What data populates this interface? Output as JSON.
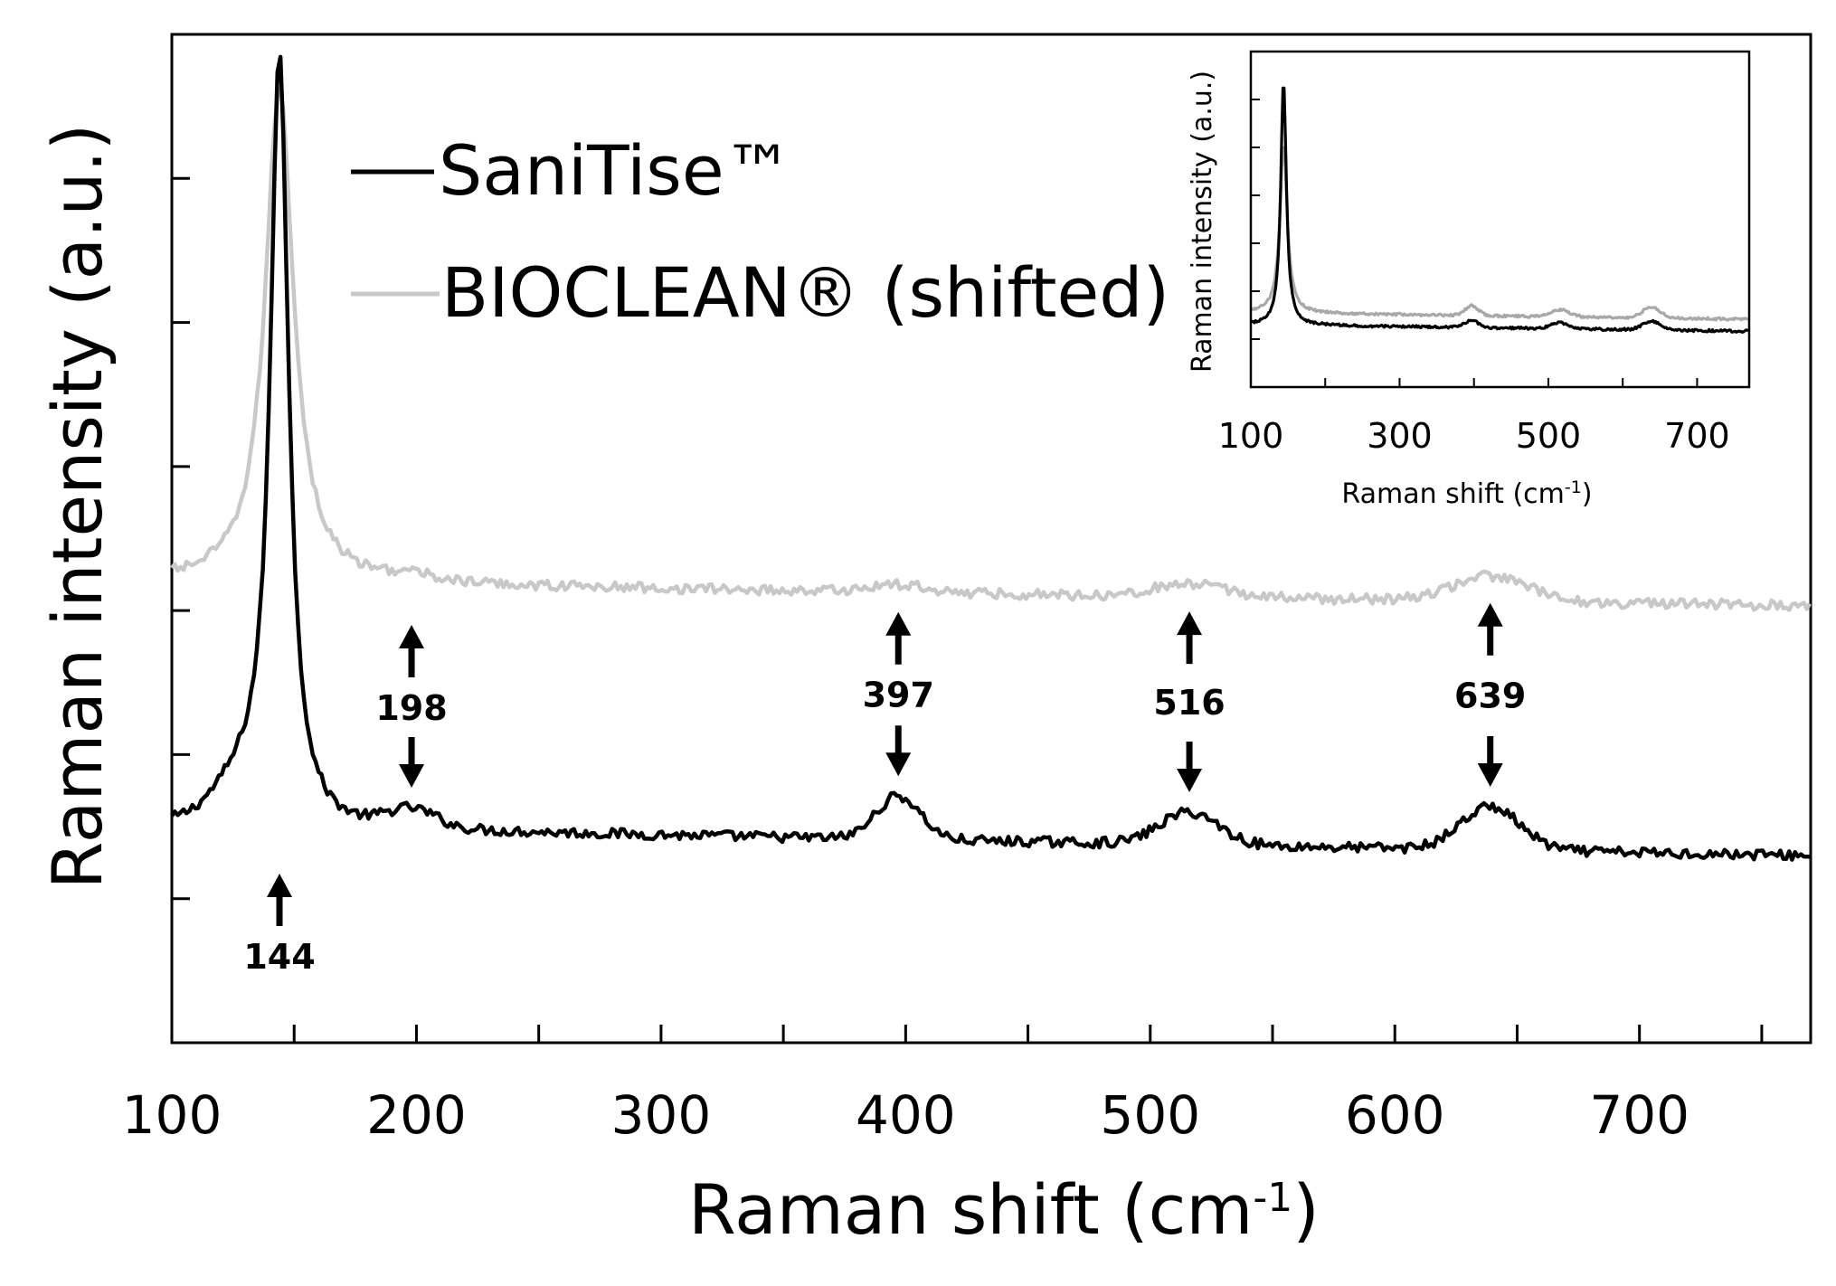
{
  "chart_data": [
    {
      "type": "line",
      "title": "",
      "xlabel": "Raman shift (cm",
      "xlabel_sup": "-1",
      "xlabel_close": ")",
      "ylabel": "Raman intensity (a.u.)",
      "xlim": [
        100,
        770
      ],
      "ylim": [
        0,
        14
      ],
      "x_ticks": [
        100,
        200,
        300,
        400,
        500,
        600,
        700
      ],
      "x_tick_labels": [
        "100",
        "200",
        "300",
        "400",
        "500",
        "600",
        "700"
      ],
      "x_minor_ticks": [
        150,
        250,
        350,
        450,
        550,
        650,
        750
      ],
      "y_ticks": [
        2,
        4,
        6,
        8,
        10,
        12
      ],
      "y_tick_labels": [],
      "legend": {
        "position": "top-center",
        "entries": [
          {
            "label": "SaniTise™",
            "color": "#000000"
          },
          {
            "label": "BIOCLEAN® (shifted)",
            "color": "#c8c8c8"
          }
        ]
      },
      "series": [
        {
          "name": "SaniTise™",
          "color": "#000000",
          "baseline": 3.0,
          "slope_per_100": -0.06,
          "noise": 0.07,
          "peaks": [
            {
              "x": 144,
              "height": 10.6,
              "width": 4.5,
              "shape": "lorentz"
            },
            {
              "x": 130,
              "height": 0.5,
              "width": 12,
              "shape": "gauss"
            },
            {
              "x": 198,
              "height": 0.25,
              "width": 10,
              "shape": "gauss"
            },
            {
              "x": 397,
              "height": 0.6,
              "width": 9,
              "shape": "gauss"
            },
            {
              "x": 516,
              "height": 0.45,
              "width": 12,
              "shape": "gauss"
            },
            {
              "x": 639,
              "height": 0.6,
              "width": 12,
              "shape": "gauss"
            }
          ]
        },
        {
          "name": "BIOCLEAN® (shifted)",
          "color": "#c8c8c8",
          "baseline": 6.4,
          "slope_per_100": -0.05,
          "noise": 0.07,
          "peaks": [
            {
              "x": 144,
              "height": 6.9,
              "width": 7,
              "shape": "lorentz"
            },
            {
              "x": 198,
              "height": 0.08,
              "width": 10,
              "shape": "gauss"
            },
            {
              "x": 397,
              "height": 0.1,
              "width": 12,
              "shape": "gauss"
            },
            {
              "x": 516,
              "height": 0.17,
              "width": 15,
              "shape": "gauss"
            },
            {
              "x": 639,
              "height": 0.35,
              "width": 15,
              "shape": "gauss"
            }
          ]
        }
      ],
      "annotations": [
        {
          "label": "144",
          "x": 144,
          "arrow": "up"
        },
        {
          "label": "198",
          "x": 198,
          "arrow": "both"
        },
        {
          "label": "397",
          "x": 397,
          "arrow": "both"
        },
        {
          "label": "516",
          "x": 516,
          "arrow": "both"
        },
        {
          "label": "639",
          "x": 639,
          "arrow": "both"
        }
      ]
    },
    {
      "type": "line",
      "title": "",
      "inset": true,
      "xlabel": "Raman shift (cm",
      "xlabel_sup": "-1",
      "xlabel_close": ")",
      "ylabel": "Raman intensity (a.u.)",
      "xlim": [
        100,
        770
      ],
      "ylim": [
        0,
        14
      ],
      "x_ticks": [
        100,
        200,
        300,
        400,
        500,
        600,
        700
      ],
      "x_tick_labels": [
        "100",
        "300",
        "500",
        "700"
      ],
      "x_labeled_ticks": [
        100,
        300,
        500,
        700
      ],
      "y_ticks": [
        2,
        4,
        6,
        8,
        10,
        12
      ],
      "series": [
        {
          "name": "SaniTise™",
          "color": "#000000",
          "baseline": 2.6,
          "slope_per_100": -0.04,
          "noise": 0.05,
          "peaks": [
            {
              "x": 144,
              "height": 10.2,
              "width": 4.5,
              "shape": "lorentz"
            },
            {
              "x": 397,
              "height": 0.3,
              "width": 9,
              "shape": "gauss"
            },
            {
              "x": 516,
              "height": 0.25,
              "width": 12,
              "shape": "gauss"
            },
            {
              "x": 639,
              "height": 0.35,
              "width": 12,
              "shape": "gauss"
            }
          ]
        },
        {
          "name": "BIOCLEAN®",
          "color": "#a8a8a8",
          "baseline": 3.1,
          "slope_per_100": -0.04,
          "noise": 0.05,
          "peaks": [
            {
              "x": 144,
              "height": 7.0,
              "width": 6,
              "shape": "lorentz"
            },
            {
              "x": 397,
              "height": 0.4,
              "width": 9,
              "shape": "gauss"
            },
            {
              "x": 516,
              "height": 0.3,
              "width": 12,
              "shape": "gauss"
            },
            {
              "x": 639,
              "height": 0.45,
              "width": 12,
              "shape": "gauss"
            }
          ]
        }
      ]
    }
  ]
}
